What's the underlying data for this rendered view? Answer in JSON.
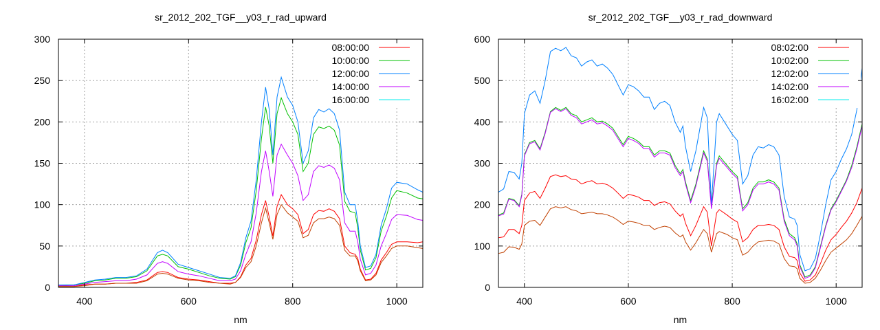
{
  "chart_data": [
    {
      "type": "line",
      "title": "sr_2012_202_TGF__y03_r_rad_upward",
      "xlabel": "nm",
      "ylabel": "",
      "xlim": [
        350,
        1050
      ],
      "ylim": [
        0,
        300
      ],
      "xticks": [
        400,
        600,
        800,
        1000
      ],
      "yticks": [
        0,
        50,
        100,
        150,
        200,
        250,
        300
      ],
      "grid": true,
      "legend_position": "top-right",
      "x": [
        350,
        380,
        400,
        420,
        440,
        460,
        480,
        500,
        520,
        540,
        550,
        560,
        580,
        600,
        620,
        640,
        660,
        680,
        690,
        700,
        710,
        720,
        730,
        740,
        748,
        755,
        762,
        770,
        778,
        790,
        800,
        810,
        820,
        830,
        840,
        850,
        860,
        870,
        880,
        890,
        900,
        910,
        920,
        925,
        930,
        940,
        950,
        960,
        970,
        980,
        990,
        1000,
        1020,
        1040,
        1050
      ],
      "series": [
        {
          "name": "08:00:00",
          "legend_color": "#ff0000",
          "color": "#ff0000",
          "values": [
            1,
            1,
            3,
            4,
            4,
            5,
            5,
            6,
            9,
            18,
            19,
            18,
            12,
            10,
            9,
            7,
            5,
            5,
            6,
            13,
            27,
            35,
            57,
            88,
            105,
            85,
            62,
            98,
            112,
            100,
            95,
            88,
            65,
            70,
            88,
            93,
            92,
            95,
            92,
            83,
            50,
            42,
            40,
            35,
            22,
            9,
            10,
            17,
            33,
            42,
            52,
            55,
            55,
            54,
            55
          ]
        },
        {
          "name": "10:00:00",
          "legend_color": "#00c000",
          "color": "#00c000",
          "values": [
            2,
            3,
            5,
            8,
            9,
            11,
            11,
            13,
            20,
            38,
            40,
            38,
            25,
            22,
            18,
            14,
            11,
            10,
            13,
            27,
            54,
            72,
            117,
            180,
            218,
            195,
            150,
            210,
            229,
            210,
            200,
            185,
            140,
            150,
            185,
            194,
            192,
            195,
            190,
            172,
            104,
            92,
            90,
            72,
            45,
            21,
            23,
            36,
            68,
            86,
            108,
            117,
            114,
            108,
            107
          ]
        },
        {
          "name": "12:00:00",
          "legend_color": "#0080ff",
          "color": "#0080ff",
          "values": [
            3,
            3,
            6,
            9,
            10,
            12,
            12,
            14,
            22,
            42,
            45,
            42,
            28,
            24,
            20,
            16,
            12,
            11,
            14,
            30,
            60,
            80,
            130,
            200,
            242,
            215,
            160,
            230,
            254,
            230,
            220,
            200,
            150,
            165,
            205,
            215,
            212,
            216,
            210,
            190,
            115,
            100,
            100,
            80,
            50,
            24,
            26,
            40,
            75,
            95,
            120,
            127,
            125,
            118,
            115
          ]
        },
        {
          "name": "14:00:00",
          "legend_color": "#c000ff",
          "color": "#c000ff",
          "values": [
            2,
            2,
            4,
            6,
            7,
            8,
            8,
            10,
            15,
            29,
            31,
            29,
            19,
            16,
            14,
            11,
            8,
            8,
            10,
            20,
            40,
            55,
            90,
            140,
            165,
            140,
            110,
            160,
            173,
            160,
            150,
            135,
            105,
            112,
            140,
            147,
            145,
            148,
            144,
            130,
            78,
            68,
            68,
            55,
            34,
            15,
            17,
            27,
            50,
            65,
            82,
            88,
            87,
            82,
            81
          ]
        },
        {
          "name": "16:00:00",
          "legend_color": "#00eeee",
          "color": "#c04000",
          "values": [
            1,
            1,
            2,
            4,
            4,
            5,
            5,
            5,
            8,
            16,
            17,
            16,
            11,
            9,
            8,
            6,
            5,
            4,
            6,
            12,
            24,
            31,
            50,
            78,
            96,
            78,
            58,
            88,
            100,
            90,
            85,
            80,
            60,
            63,
            78,
            83,
            83,
            85,
            83,
            75,
            45,
            38,
            38,
            32,
            20,
            8,
            9,
            15,
            30,
            38,
            47,
            50,
            50,
            48,
            47
          ]
        }
      ]
    },
    {
      "type": "line",
      "title": "sr_2012_202_TGF__y03_r_rad_downward",
      "xlabel": "nm",
      "ylabel": "",
      "xlim": [
        350,
        1050
      ],
      "ylim": [
        0,
        600
      ],
      "xticks": [
        400,
        600,
        800,
        1000
      ],
      "yticks": [
        0,
        100,
        200,
        300,
        400,
        500,
        600
      ],
      "grid": true,
      "legend_position": "top-right",
      "x": [
        350,
        360,
        370,
        380,
        390,
        395,
        400,
        410,
        420,
        430,
        440,
        450,
        460,
        470,
        480,
        490,
        500,
        510,
        520,
        530,
        540,
        550,
        560,
        570,
        580,
        590,
        600,
        610,
        620,
        630,
        640,
        650,
        660,
        670,
        680,
        690,
        700,
        705,
        710,
        720,
        730,
        745,
        752,
        760,
        770,
        775,
        790,
        800,
        810,
        820,
        830,
        840,
        850,
        860,
        870,
        880,
        890,
        900,
        910,
        920,
        925,
        930,
        940,
        950,
        960,
        970,
        980,
        990,
        1000,
        1010,
        1020,
        1030,
        1040,
        1050
      ],
      "series": [
        {
          "name": "08:02:00",
          "legend_color": "#ff0000",
          "color": "#ff0000",
          "values": [
            120,
            122,
            140,
            140,
            130,
            150,
            210,
            228,
            232,
            215,
            240,
            268,
            272,
            268,
            270,
            262,
            260,
            250,
            255,
            258,
            250,
            252,
            248,
            240,
            228,
            215,
            225,
            222,
            218,
            210,
            210,
            198,
            205,
            207,
            202,
            185,
            172,
            178,
            155,
            125,
            150,
            195,
            182,
            100,
            180,
            188,
            175,
            165,
            158,
            110,
            120,
            140,
            150,
            150,
            152,
            150,
            140,
            98,
            75,
            72,
            65,
            35,
            15,
            18,
            30,
            58,
            90,
            115,
            128,
            145,
            160,
            180,
            205,
            240
          ]
        },
        {
          "name": "10:02:00",
          "legend_color": "#00c000",
          "color": "#00c000",
          "values": [
            175,
            180,
            215,
            212,
            198,
            225,
            320,
            350,
            355,
            335,
            375,
            425,
            435,
            428,
            435,
            420,
            415,
            400,
            405,
            410,
            400,
            402,
            395,
            385,
            365,
            345,
            365,
            360,
            352,
            340,
            340,
            320,
            330,
            330,
            325,
            295,
            275,
            285,
            255,
            210,
            250,
            330,
            310,
            195,
            300,
            318,
            295,
            280,
            268,
            190,
            205,
            240,
            255,
            255,
            260,
            255,
            240,
            165,
            130,
            120,
            105,
            55,
            25,
            30,
            50,
            100,
            150,
            190,
            210,
            235,
            260,
            295,
            340,
            395
          ]
        },
        {
          "name": "12:02:00",
          "legend_color": "#0080ff",
          "color": "#0080ff",
          "values": [
            230,
            238,
            280,
            278,
            262,
            300,
            420,
            465,
            475,
            445,
            500,
            570,
            578,
            572,
            580,
            560,
            555,
            535,
            545,
            550,
            535,
            540,
            530,
            515,
            490,
            465,
            490,
            485,
            475,
            460,
            460,
            430,
            445,
            450,
            440,
            400,
            375,
            390,
            340,
            280,
            330,
            435,
            410,
            200,
            400,
            420,
            390,
            370,
            355,
            250,
            270,
            320,
            340,
            337,
            345,
            340,
            320,
            220,
            170,
            165,
            150,
            80,
            40,
            45,
            70,
            130,
            200,
            260,
            280,
            310,
            335,
            370,
            430,
            530
          ]
        },
        {
          "name": "14:02:00",
          "legend_color": "#c000ff",
          "color": "#c000ff",
          "values": [
            173,
            177,
            213,
            210,
            195,
            222,
            318,
            347,
            352,
            332,
            372,
            423,
            432,
            425,
            432,
            416,
            410,
            395,
            400,
            405,
            395,
            398,
            390,
            380,
            360,
            340,
            360,
            355,
            348,
            335,
            335,
            315,
            325,
            325,
            320,
            290,
            270,
            280,
            250,
            205,
            245,
            325,
            305,
            190,
            295,
            312,
            290,
            275,
            263,
            185,
            200,
            235,
            250,
            250,
            255,
            250,
            235,
            160,
            125,
            115,
            100,
            50,
            22,
            27,
            47,
            97,
            147,
            187,
            207,
            232,
            257,
            290,
            335,
            390
          ]
        },
        {
          "name": "16:02:00",
          "legend_color": "#00eeee",
          "color": "#c04000",
          "values": [
            82,
            85,
            98,
            97,
            92,
            105,
            150,
            160,
            162,
            150,
            170,
            190,
            195,
            192,
            195,
            188,
            185,
            178,
            180,
            182,
            178,
            178,
            175,
            170,
            162,
            152,
            160,
            158,
            155,
            150,
            150,
            140,
            145,
            148,
            145,
            132,
            122,
            127,
            110,
            90,
            108,
            140,
            130,
            85,
            130,
            135,
            128,
            120,
            115,
            78,
            85,
            100,
            110,
            112,
            114,
            112,
            105,
            70,
            52,
            50,
            45,
            22,
            10,
            12,
            22,
            42,
            65,
            85,
            95,
            105,
            115,
            130,
            150,
            172
          ]
        }
      ]
    }
  ]
}
